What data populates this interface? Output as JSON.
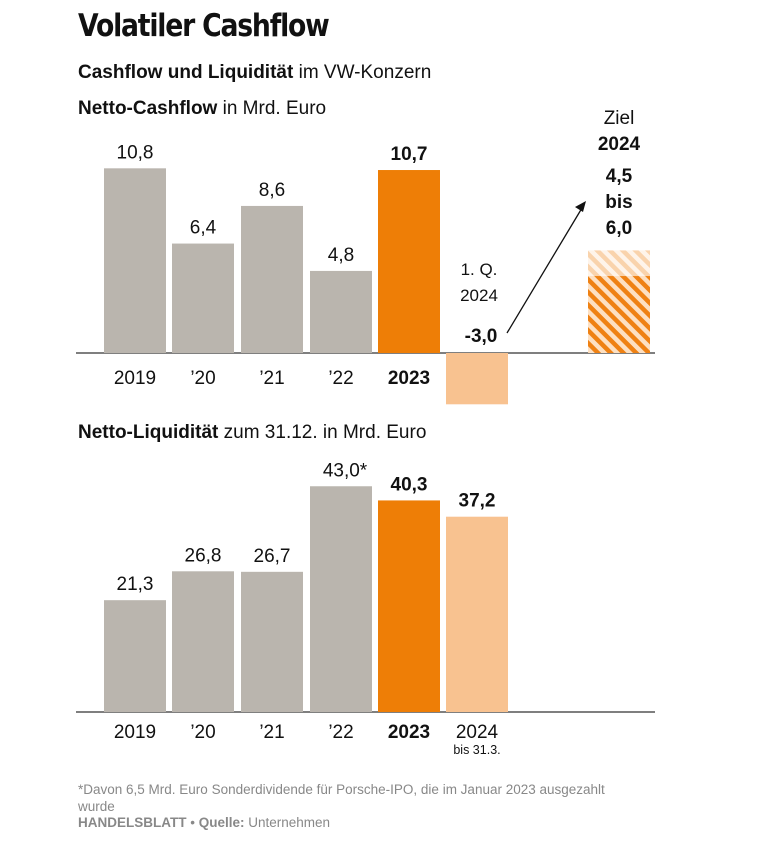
{
  "header": {
    "title": "Volatiler Cashflow",
    "subtitle_bold": "Cashflow und Liquidität",
    "subtitle_rest": " im VW-Konzern"
  },
  "colors": {
    "gray": "#bab5ae",
    "orange": "#ee7e06",
    "light_orange": "#f8c290",
    "hatch": "#ef8113",
    "axis": "#333333"
  },
  "footer": {
    "footnote": "*Davon 6,5 Mrd. Euro Sonderdividende für Porsche-IPO, die im Januar 2023 ausgezahlt wurde",
    "brand": "HANDELSBLATT",
    "separator": " • ",
    "source_label": "Quelle:",
    "source": " Unternehmen"
  },
  "chart_data": [
    {
      "type": "bar",
      "title_bold": "Netto-Cashflow",
      "title_rest": " in Mrd. Euro",
      "categories": [
        "2019",
        "’20",
        "’21",
        "’22",
        "2023",
        "1. Q. 2024"
      ],
      "values": [
        10.8,
        6.4,
        8.6,
        4.8,
        10.7,
        -3.0
      ],
      "value_labels": [
        "10,8",
        "6,4",
        "8,6",
        "4,8",
        "10,7",
        "-3,0"
      ],
      "category_labels": [
        "2019",
        "’20",
        "’21",
        "’22",
        "2023",
        ""
      ],
      "inline_label": [
        "1. Q.",
        "2024"
      ],
      "highlight": [
        false,
        false,
        false,
        false,
        true,
        false
      ],
      "target": {
        "label_top": "Ziel",
        "year": "2024",
        "low": 4.5,
        "high": 6.0,
        "range_text": [
          "4,5",
          "bis",
          "6,0"
        ]
      },
      "ylim": [
        -3.0,
        10.8
      ]
    },
    {
      "type": "bar",
      "title_bold": "Netto-Liquidität",
      "title_rest": " zum 31.12. in Mrd. Euro",
      "categories": [
        "2019",
        "’20",
        "’21",
        "’22",
        "2023",
        "2024"
      ],
      "values": [
        21.3,
        26.8,
        26.7,
        43.0,
        40.3,
        37.2
      ],
      "value_labels": [
        "21,3",
        "26,8",
        "26,7",
        "43,0*",
        "40,3",
        "37,2"
      ],
      "category_sublabel": "bis 31.3.",
      "highlight": [
        false,
        false,
        false,
        false,
        true,
        false
      ],
      "ylim": [
        0,
        43.0
      ]
    }
  ]
}
